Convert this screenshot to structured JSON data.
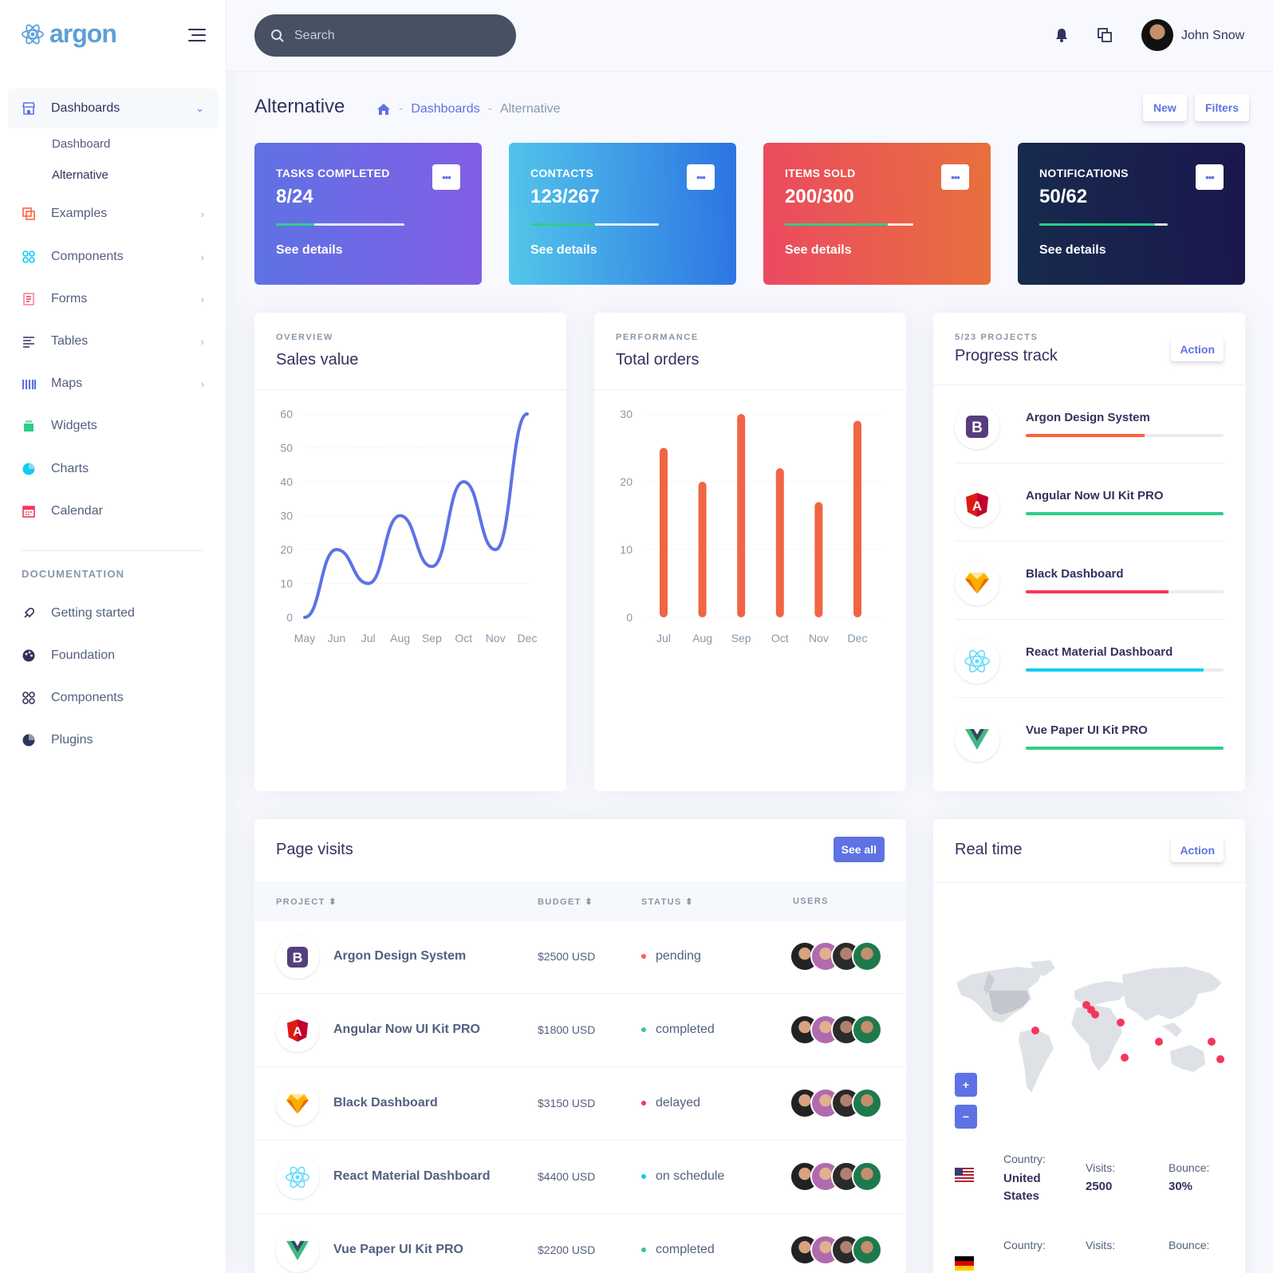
{
  "brand": "argon",
  "sidebar": {
    "dashboards": "Dashboards",
    "sub": [
      "Dashboard",
      "Alternative"
    ],
    "items": [
      "Examples",
      "Components",
      "Forms",
      "Tables",
      "Maps",
      "Widgets",
      "Charts",
      "Calendar"
    ],
    "doc_heading": "DOCUMENTATION",
    "doc_items": [
      "Getting started",
      "Foundation",
      "Components",
      "Plugins"
    ]
  },
  "topbar": {
    "search_placeholder": "Search",
    "username": "John Snow"
  },
  "header": {
    "title": "Alternative",
    "crumbs": [
      "Dashboards",
      "Alternative"
    ],
    "new_label": "New",
    "filters_label": "Filters"
  },
  "stats": [
    {
      "label": "TASKS COMPLETED",
      "value": "8/24",
      "progress": 0.3,
      "link": "See details"
    },
    {
      "label": "CONTACTS",
      "value": "123/267",
      "progress": 0.5,
      "link": "See details"
    },
    {
      "label": "ITEMS SOLD",
      "value": "200/300",
      "progress": 0.8,
      "link": "See details"
    },
    {
      "label": "NOTIFICATIONS",
      "value": "50/62",
      "progress": 0.9,
      "link": "See details"
    }
  ],
  "chart_data": [
    {
      "type": "line",
      "overline": "OVERVIEW",
      "title": "Sales value",
      "categories": [
        "May",
        "Jun",
        "Jul",
        "Aug",
        "Sep",
        "Oct",
        "Nov",
        "Dec"
      ],
      "values": [
        0,
        20,
        10,
        30,
        15,
        40,
        20,
        60
      ],
      "ylim": [
        0,
        60
      ],
      "yticks": [
        0,
        10,
        20,
        30,
        40,
        50,
        60
      ],
      "color": "#5e72e4"
    },
    {
      "type": "bar",
      "overline": "PERFORMANCE",
      "title": "Total orders",
      "categories": [
        "Jul",
        "Aug",
        "Sep",
        "Oct",
        "Nov",
        "Dec"
      ],
      "values": [
        25,
        20,
        30,
        22,
        17,
        29
      ],
      "ylim": [
        0,
        30
      ],
      "yticks": [
        0,
        10,
        20,
        30
      ],
      "color": "#f5365c"
    }
  ],
  "progress_track": {
    "overline": "5/23 PROJECTS",
    "title": "Progress track",
    "action": "Action",
    "items": [
      {
        "name": "Argon Design System",
        "progress": 0.6,
        "color": "#fb6340",
        "icon": "bootstrap-icon"
      },
      {
        "name": "Angular Now UI Kit PRO",
        "progress": 1.0,
        "color": "#2dce89",
        "icon": "angular-icon"
      },
      {
        "name": "Black Dashboard",
        "progress": 0.72,
        "color": "#f5365c",
        "icon": "sketch-icon"
      },
      {
        "name": "React Material Dashboard",
        "progress": 0.9,
        "color": "#11cdef",
        "icon": "react-icon"
      },
      {
        "name": "Vue Paper UI Kit PRO",
        "progress": 1.0,
        "color": "#2dce89",
        "icon": "vue-icon"
      }
    ]
  },
  "page_visits": {
    "title": "Page visits",
    "see_all": "See all",
    "headers": [
      "PROJECT",
      "BUDGET",
      "STATUS",
      "USERS"
    ],
    "rows": [
      {
        "name": "Argon Design System",
        "budget": "$2500 USD",
        "status": "pending",
        "status_color": "#fb6340",
        "icon": "bootstrap-icon"
      },
      {
        "name": "Angular Now UI Kit PRO",
        "budget": "$1800 USD",
        "status": "completed",
        "status_color": "#2dce89",
        "icon": "angular-icon"
      },
      {
        "name": "Black Dashboard",
        "budget": "$3150 USD",
        "status": "delayed",
        "status_color": "#f5365c",
        "icon": "sketch-icon"
      },
      {
        "name": "React Material Dashboard",
        "budget": "$4400 USD",
        "status": "on schedule",
        "status_color": "#11cdef",
        "icon": "react-icon"
      },
      {
        "name": "Vue Paper UI Kit PRO",
        "budget": "$2200 USD",
        "status": "completed",
        "status_color": "#2dce89",
        "icon": "vue-icon"
      }
    ]
  },
  "real_time": {
    "title": "Real time",
    "action": "Action",
    "zoom_in": "+",
    "zoom_out": "−",
    "countries": [
      {
        "country_label": "Country:",
        "country": "United States",
        "visits_label": "Visits:",
        "visits": "2500",
        "bounce_label": "Bounce:",
        "bounce": "30%"
      },
      {
        "country_label": "Country:",
        "visits_label": "Visits:",
        "bounce_label": "Bounce:"
      }
    ]
  }
}
